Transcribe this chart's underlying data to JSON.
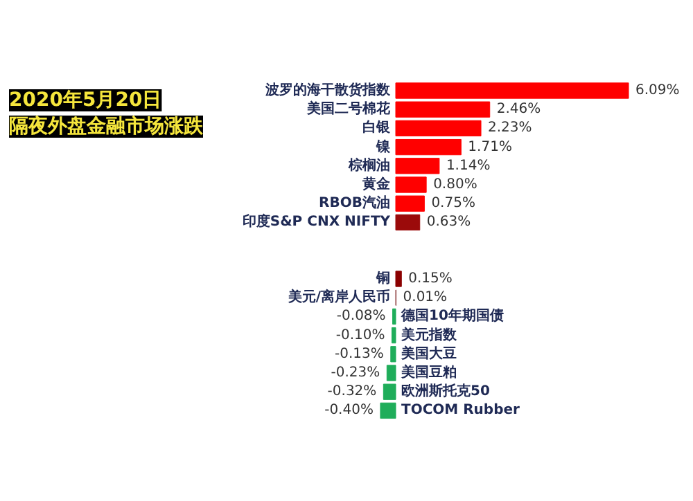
{
  "chart_data": {
    "type": "bar",
    "orientation": "horizontal",
    "title": "2020年5月20日",
    "subtitle": "隔夜外盘金融市场涨跌",
    "categories": [
      "波罗的海干散货指数",
      "美国二号棉花",
      "白银",
      "镍",
      "棕榈油",
      "黄金",
      "RBOB汽油",
      "印度S&P CNX NIFTY",
      null,
      null,
      "铜",
      "美元/离岸人民币",
      "德国10年期国债",
      "美元指数",
      "美国大豆",
      "美国豆粕",
      "欧洲斯托克50",
      "TOCOM Rubber"
    ],
    "values": [
      6.09,
      2.46,
      2.23,
      1.71,
      1.14,
      0.8,
      0.75,
      0.63,
      null,
      null,
      0.15,
      0.01,
      -0.08,
      -0.1,
      -0.13,
      -0.23,
      -0.32,
      -0.4
    ],
    "colors": [
      "#ff0000",
      "#ff0000",
      "#ff0000",
      "#ff0000",
      "#ff0000",
      "#ff0000",
      "#ff0000",
      "#9b0a0a",
      "#ff0000",
      "#8b0000",
      "#8b0000",
      "#8b3a3a",
      "#1fad5a",
      "#1fad5a",
      "#1fad5a",
      "#1fad5a",
      "#1fad5a",
      "#1fad5a"
    ],
    "value_labels": [
      "6.09%",
      "2.46%",
      "2.23%",
      "1.71%",
      "1.14%",
      "0.80%",
      "0.75%",
      "0.63%",
      null,
      null,
      "0.15%",
      "0.01%",
      "-0.08%",
      "-0.10%",
      "-0.13%",
      "-0.23%",
      "-0.32%",
      "-0.40%"
    ],
    "grid": false
  }
}
